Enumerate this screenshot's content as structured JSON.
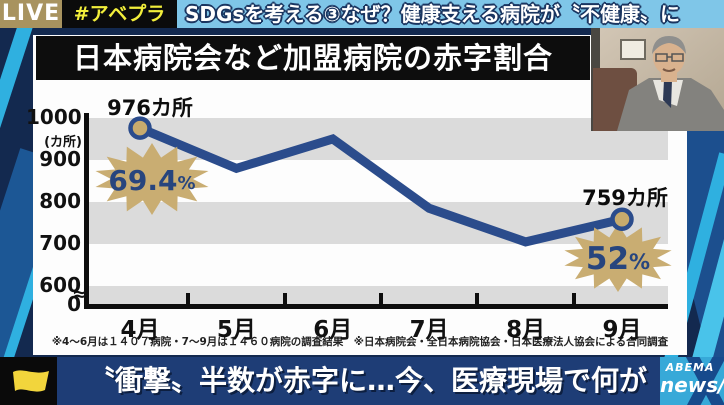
{
  "header": {
    "live_label": "LIVE",
    "hashtag": "#アベプラ",
    "headline": "SDGsを考える③なぜ？健康支える病院が〝不健康〟に"
  },
  "chart_data": {
    "type": "line",
    "title": "日本病院会など加盟病院の赤字割合",
    "categories": [
      "4月",
      "5月",
      "6月",
      "7月",
      "8月",
      "9月"
    ],
    "values": [
      976,
      880,
      950,
      785,
      705,
      759
    ],
    "unit_label": "(カ所)",
    "y_ticks": [
      1000,
      900,
      800,
      700,
      600
    ],
    "y_origin_label": "0",
    "axis_break_symbol": "≈",
    "ylim": [
      600,
      1000
    ],
    "grid": "alternating horizontal gray bands",
    "legend": "none",
    "point_labels": [
      {
        "index": 0,
        "text": "976カ所",
        "pct_value": "69.4",
        "pct_suffix": "%"
      },
      {
        "index": 5,
        "text": "759カ所",
        "pct_value": "52",
        "pct_suffix": "%"
      }
    ],
    "footnote": "※4～6月は１４０７病院・7～9月は１４６０病院の調査結果　※日本病院会・全日本病院協会・日本医療法人協会による合同調査"
  },
  "footer": {
    "headline": "〝衝撃〟半数が赤字に…今、医療現場で何が",
    "logo_line1": "ABEMA",
    "logo_line2": "news/"
  },
  "colors": {
    "line": "#2b4c8c",
    "marker_fill": "#c8ab6d",
    "burst_fill": "#c9ad72",
    "burst_text": "#27457e",
    "band_gray": "#dbdbdb",
    "live_badge_bg": "#a8935f",
    "hashtag_color": "#f2ee3b",
    "ticker_bg": "#7fc6e8",
    "footer_bg": "#1e3d76",
    "logo_bg": "#37a9d8",
    "background_navy": "#13294f",
    "accent_cyan": "#2fb0e0",
    "accent_blue": "#1c5795"
  }
}
